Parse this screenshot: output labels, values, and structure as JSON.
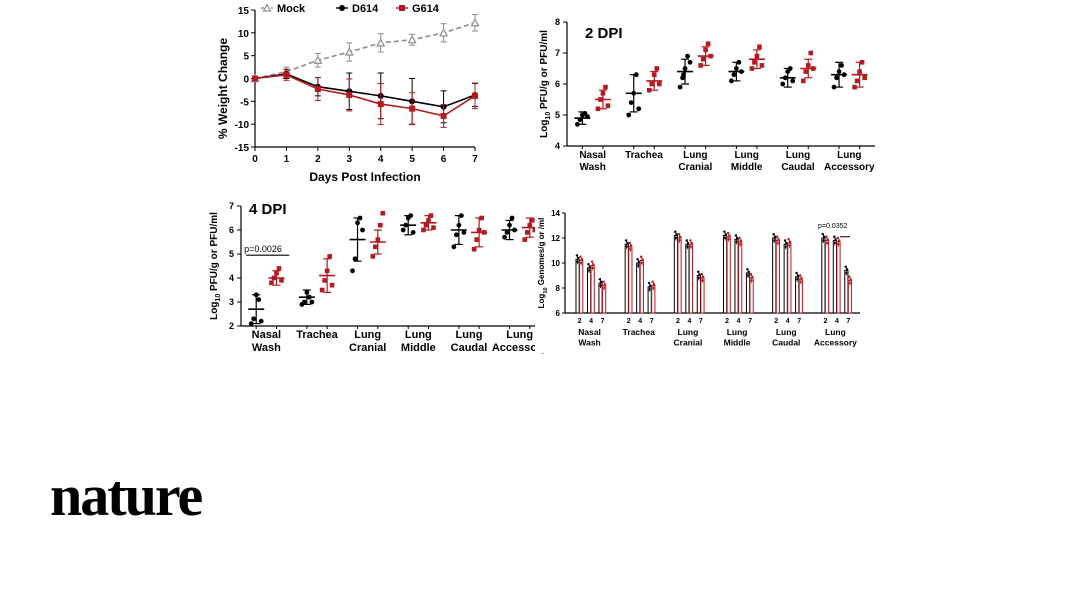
{
  "colors": {
    "mock": "#8c8c8c",
    "d614": "#000000",
    "g614": "#b3191e"
  },
  "brand": {
    "name": "nature"
  },
  "chart_data": [
    {
      "type": "line",
      "legend": [
        "Mock",
        "D614",
        "G614"
      ],
      "xlabel": "Days Post Infection",
      "ylabel": "% Weight Change",
      "x": [
        0,
        1,
        2,
        3,
        4,
        5,
        6,
        7
      ],
      "xlim": [
        0,
        7
      ],
      "ylim": [
        -15,
        15
      ],
      "yticks": [
        15,
        10,
        5,
        0,
        -5,
        -10,
        -15
      ],
      "series": [
        {
          "name": "Mock",
          "values": [
            0,
            1.5,
            4,
            5.8,
            7.8,
            8.5,
            10,
            12.2
          ],
          "err": [
            0.5,
            1,
            1.5,
            2,
            2,
            1.2,
            2,
            1.8
          ]
        },
        {
          "name": "D614",
          "values": [
            0,
            1,
            -1.8,
            -2.8,
            -3.8,
            -5,
            -6.2,
            -3.6
          ],
          "err": [
            0.5,
            1,
            2,
            4,
            5,
            5,
            3.5,
            2.5
          ]
        },
        {
          "name": "G614",
          "values": [
            0,
            0.8,
            -2.3,
            -3.6,
            -5.6,
            -6.6,
            -8.2,
            -3.8
          ],
          "err": [
            0.5,
            1.2,
            2.5,
            3.5,
            4.5,
            3.5,
            2.5,
            2.8
          ]
        }
      ]
    },
    {
      "type": "scatter",
      "title": "2 DPI",
      "ylabel": "Log10 PFU/g or PFU/ml",
      "ylim": [
        4,
        8
      ],
      "yticks": [
        8,
        7,
        6,
        5,
        4
      ],
      "categories": [
        "Nasal Wash",
        "Trachea",
        "Lung Cranial",
        "Lung Middle",
        "Lung Caudal",
        "Lung Accessory"
      ],
      "series": [
        {
          "name": "D614",
          "mean": [
            4.9,
            5.7,
            6.4,
            6.4,
            6.2,
            6.3
          ],
          "sd": [
            0.2,
            0.6,
            0.4,
            0.3,
            0.3,
            0.4
          ],
          "points": [
            [
              4.7,
              4.85,
              5.0,
              5.05,
              4.95
            ],
            [
              5.0,
              5.4,
              5.7,
              6.3,
              5.2
            ],
            [
              5.9,
              6.2,
              6.5,
              6.9,
              6.7,
              6.3
            ],
            [
              6.1,
              6.3,
              6.5,
              6.7,
              6.4
            ],
            [
              6.0,
              6.2,
              6.4,
              6.5,
              6.1
            ],
            [
              5.9,
              6.2,
              6.4,
              6.6,
              6.3
            ]
          ]
        },
        {
          "name": "G614",
          "mean": [
            5.5,
            6.1,
            6.9,
            6.8,
            6.5,
            6.3
          ],
          "sd": [
            0.3,
            0.3,
            0.3,
            0.3,
            0.3,
            0.4
          ],
          "points": [
            [
              5.2,
              5.5,
              5.7,
              5.9,
              5.3
            ],
            [
              5.8,
              6.0,
              6.3,
              6.5,
              6.0
            ],
            [
              6.6,
              6.8,
              7.1,
              7.3,
              6.9
            ],
            [
              6.5,
              6.7,
              6.9,
              7.2,
              6.6
            ],
            [
              6.1,
              6.4,
              6.6,
              7.0,
              6.5
            ],
            [
              5.9,
              6.1,
              6.4,
              6.7,
              6.2
            ]
          ]
        }
      ]
    },
    {
      "type": "scatter",
      "title": "4 DPI",
      "ylabel": "Log10 PFU/g or PFU/ml",
      "ylim": [
        2,
        7
      ],
      "yticks": [
        7,
        6,
        5,
        4,
        3,
        2
      ],
      "categories": [
        "Nasal Wash",
        "Trachea",
        "Lung Cranial",
        "Lung Middle",
        "Lung Caudal",
        "Lung Accessory"
      ],
      "annotation": "p=0.0026",
      "series": [
        {
          "name": "D614",
          "mean": [
            2.7,
            3.2,
            5.6,
            6.2,
            6.0,
            6.0
          ],
          "sd": [
            0.6,
            0.3,
            0.9,
            0.4,
            0.6,
            0.4
          ],
          "points": [
            [
              2.1,
              2.3,
              3.3,
              3.1,
              2.2
            ],
            [
              2.9,
              3.0,
              3.4,
              3.2,
              3.0
            ],
            [
              4.3,
              4.8,
              6.3,
              6.5,
              6.0
            ],
            [
              6.0,
              6.2,
              6.5,
              6.6,
              5.9
            ],
            [
              5.3,
              5.8,
              6.2,
              6.6,
              5.9
            ],
            [
              5.7,
              5.9,
              6.2,
              6.5,
              6.0
            ]
          ]
        },
        {
          "name": "G614",
          "mean": [
            4.0,
            4.1,
            5.5,
            6.3,
            5.9,
            6.1
          ],
          "sd": [
            0.3,
            0.7,
            0.5,
            0.3,
            0.6,
            0.4
          ],
          "points": [
            [
              3.8,
              4.0,
              4.2,
              4.4,
              3.9
            ],
            [
              3.5,
              3.9,
              4.3,
              4.9,
              3.7
            ],
            [
              4.9,
              5.3,
              5.6,
              6.2,
              6.7
            ],
            [
              6.0,
              6.2,
              6.4,
              6.6,
              6.1
            ],
            [
              5.2,
              5.6,
              6.0,
              6.5,
              5.9
            ],
            [
              5.6,
              5.9,
              6.2,
              6.4,
              6.0
            ]
          ]
        }
      ]
    },
    {
      "type": "bar",
      "ylabel": "Log10 Genomes/g or /ml",
      "ylim": [
        6,
        14
      ],
      "yticks": [
        14,
        12,
        10,
        8,
        6
      ],
      "days": [
        "2",
        "4",
        "7"
      ],
      "categories": [
        "Nasal Wash",
        "Trachea",
        "Lung Cranial",
        "Lung Middle",
        "Lung Caudal",
        "Lung Accessory"
      ],
      "annotation": "p=0.0352",
      "series": [
        {
          "name": "D614",
          "values": [
            [
              10.3,
              9.6,
              8.4
            ],
            [
              11.5,
              10.0,
              8.1
            ],
            [
              12.2,
              11.5,
              9.0
            ],
            [
              12.2,
              11.9,
              9.2
            ],
            [
              12.0,
              11.5,
              8.9
            ],
            [
              12.0,
              11.8,
              9.4
            ]
          ]
        },
        {
          "name": "G614",
          "values": [
            [
              10.2,
              9.8,
              8.2
            ],
            [
              11.3,
              10.2,
              8.2
            ],
            [
              12.0,
              11.5,
              8.8
            ],
            [
              12.1,
              11.7,
              8.8
            ],
            [
              11.8,
              11.6,
              8.7
            ],
            [
              11.8,
              11.7,
              8.6
            ]
          ]
        }
      ]
    }
  ]
}
